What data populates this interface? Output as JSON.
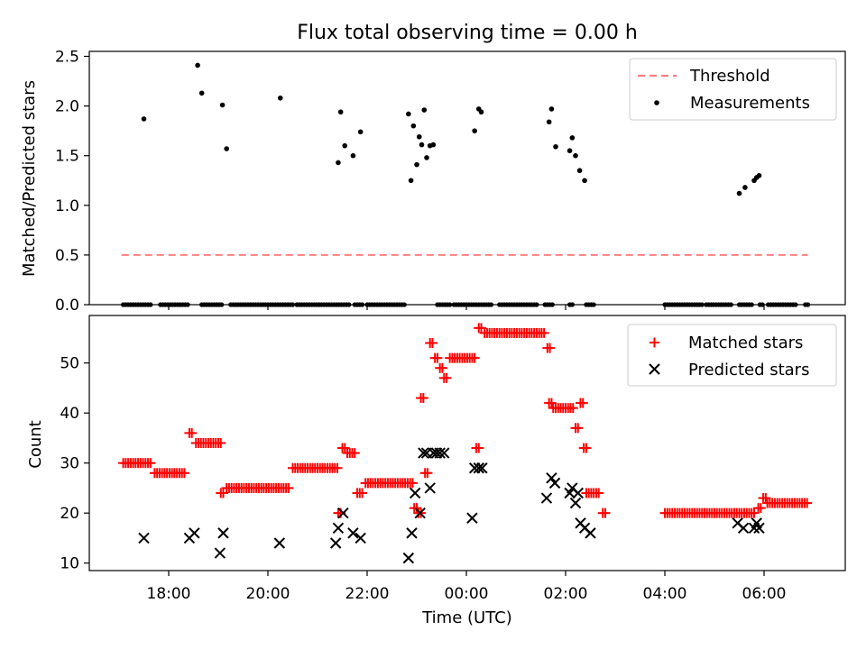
{
  "chart_data": [
    {
      "type": "scatter",
      "title": "Flux total observing time = 0.00 h",
      "ylabel": "Matched/Predicted stars",
      "xlabel": "",
      "ylim": [
        0,
        2.55
      ],
      "yticks": [
        "0.0",
        "0.5",
        "1.0",
        "1.5",
        "2.0",
        "2.5"
      ],
      "xticks_labeled": false,
      "legend": {
        "placement": "top-right",
        "entries": [
          "Threshold",
          "Measurements"
        ]
      },
      "series": [
        {
          "name": "Threshold",
          "kind": "dashed-line",
          "color": "#ff7f7f",
          "x": [
            "17:03",
            "23:59",
            "06:53"
          ],
          "y": [
            0.5,
            0.5,
            0.5
          ]
        },
        {
          "name": "Measurements",
          "kind": "dot",
          "color": "#000000",
          "x": [
            "17:30",
            "18:35",
            "18:40",
            "19:05",
            "19:10",
            "20:15",
            "21:25",
            "21:28",
            "21:33",
            "21:43",
            "21:52",
            "22:50",
            "22:53",
            "22:56",
            "23:00",
            "23:03",
            "23:06",
            "23:09",
            "23:12",
            "23:16",
            "23:20",
            "00:10",
            "00:15",
            "00:18",
            "01:40",
            "01:43",
            "01:48",
            "02:05",
            "02:08",
            "02:12",
            "02:17",
            "02:23",
            "05:30",
            "05:37",
            "05:48",
            "05:51",
            "05:54"
          ],
          "y": [
            1.87,
            2.41,
            2.13,
            2.01,
            1.57,
            2.08,
            1.43,
            1.94,
            1.6,
            1.5,
            1.74,
            1.92,
            1.25,
            1.8,
            1.41,
            1.69,
            1.61,
            1.96,
            1.48,
            1.6,
            1.61,
            1.75,
            1.97,
            1.94,
            1.84,
            1.97,
            1.59,
            1.55,
            1.68,
            1.5,
            1.35,
            1.25,
            1.12,
            1.18,
            1.25,
            1.28,
            1.3
          ]
        },
        {
          "name": "",
          "kind": "dot",
          "color": "#000000",
          "zero_segments": [
            [
              "17:05",
              "17:40"
            ],
            [
              "17:50",
              "18:25"
            ],
            [
              "18:40",
              "19:05"
            ],
            [
              "19:15",
              "20:30"
            ],
            [
              "20:35",
              "21:40"
            ],
            [
              "21:45",
              "21:55"
            ],
            [
              "22:00",
              "22:45"
            ],
            [
              "23:25",
              "23:40"
            ],
            [
              "23:45",
              "00:30"
            ],
            [
              "00:40",
              "01:25"
            ],
            [
              "01:35",
              "01:45"
            ],
            [
              "02:05",
              "02:10"
            ],
            [
              "02:25",
              "02:35"
            ],
            [
              "04:00",
              "04:45"
            ],
            [
              "04:50",
              "05:20"
            ],
            [
              "05:30",
              "05:45"
            ],
            [
              "05:55",
              "06:00"
            ],
            [
              "06:05",
              "06:40"
            ],
            [
              "06:50",
              "06:55"
            ]
          ]
        }
      ]
    },
    {
      "type": "scatter",
      "title": "",
      "ylabel": "Count",
      "xlabel": "Time (UTC)",
      "ylim": [
        8.5,
        59.5
      ],
      "yticks": [
        "10",
        "20",
        "30",
        "40",
        "50"
      ],
      "xticks": [
        "18:00",
        "20:00",
        "22:00",
        "00:00",
        "02:00",
        "04:00",
        "06:00"
      ],
      "legend": {
        "placement": "top-right",
        "entries": [
          "Matched stars",
          "Predicted stars"
        ]
      },
      "series": [
        {
          "name": "Matched stars",
          "marker": "+",
          "color": "#ff0000",
          "segments": [
            {
              "from": "17:05",
              "to": "17:40",
              "y": 30
            },
            {
              "from": "17:43",
              "to": "18:20",
              "y": 28
            },
            {
              "from": "18:25",
              "to": "18:30",
              "y": 36
            },
            {
              "from": "18:33",
              "to": "19:05",
              "y": 34
            },
            {
              "from": "19:03",
              "to": "19:06",
              "y": 24
            },
            {
              "from": "19:10",
              "to": "20:25",
              "y": 25
            },
            {
              "from": "20:30",
              "to": "21:25",
              "y": 29
            },
            {
              "from": "21:25",
              "to": "21:28",
              "y": 20
            },
            {
              "from": "21:30",
              "to": "21:33",
              "y": 33
            },
            {
              "from": "21:36",
              "to": "21:45",
              "y": 32
            },
            {
              "from": "21:48",
              "to": "21:55",
              "y": 24
            },
            {
              "from": "21:58",
              "to": "22:55",
              "y": 26
            },
            {
              "from": "22:57",
              "to": "23:00",
              "y": 21
            },
            {
              "from": "23:02",
              "to": "23:05",
              "y": 20
            },
            {
              "from": "23:05",
              "to": "23:08",
              "y": 43
            },
            {
              "from": "23:10",
              "to": "23:13",
              "y": 28
            },
            {
              "from": "23:16",
              "to": "23:19",
              "y": 54
            },
            {
              "from": "23:22",
              "to": "23:25",
              "y": 51
            },
            {
              "from": "23:28",
              "to": "23:31",
              "y": 49
            },
            {
              "from": "23:33",
              "to": "23:36",
              "y": 47
            },
            {
              "from": "23:40",
              "to": "00:10",
              "y": 51
            },
            {
              "from": "00:12",
              "to": "00:15",
              "y": 33
            },
            {
              "from": "00:15",
              "to": "00:18",
              "y": 57
            },
            {
              "from": "00:22",
              "to": "01:35",
              "y": 56
            },
            {
              "from": "01:38",
              "to": "01:41",
              "y": 53
            },
            {
              "from": "01:40",
              "to": "01:43",
              "y": 42
            },
            {
              "from": "01:45",
              "to": "02:10",
              "y": 41
            },
            {
              "from": "02:12",
              "to": "02:15",
              "y": 37
            },
            {
              "from": "02:18",
              "to": "02:21",
              "y": 42
            },
            {
              "from": "02:22",
              "to": "02:25",
              "y": 33
            },
            {
              "from": "02:25",
              "to": "02:40",
              "y": 24
            },
            {
              "from": "02:45",
              "to": "02:50",
              "y": 20
            },
            {
              "from": "04:00",
              "to": "05:50",
              "y": 20
            },
            {
              "from": "05:53",
              "to": "05:56",
              "y": 21
            },
            {
              "from": "05:59",
              "to": "06:02",
              "y": 23
            },
            {
              "from": "06:04",
              "to": "06:52",
              "y": 22
            }
          ]
        },
        {
          "name": "Predicted stars",
          "marker": "x",
          "color": "#000000",
          "x": [
            "17:30",
            "18:25",
            "18:31",
            "19:02",
            "19:06",
            "20:14",
            "21:22",
            "21:25",
            "21:31",
            "21:43",
            "21:52",
            "22:50",
            "22:54",
            "22:58",
            "23:04",
            "23:08",
            "23:12",
            "23:16",
            "23:20",
            "23:24",
            "23:28",
            "23:33",
            "00:07",
            "00:10",
            "00:15",
            "00:19",
            "01:37",
            "01:43",
            "01:47",
            "02:05",
            "02:08",
            "02:12",
            "02:15",
            "02:18",
            "02:23",
            "02:30",
            "05:28",
            "05:35",
            "05:48",
            "05:51",
            "05:54"
          ],
          "y": [
            15,
            15,
            16,
            12,
            16,
            14,
            14,
            17,
            20,
            16,
            15,
            11,
            16,
            24,
            20,
            32,
            32,
            25,
            32,
            32,
            32,
            32,
            19,
            29,
            29,
            29,
            23,
            27,
            26,
            24,
            25,
            22,
            24,
            18,
            17,
            16,
            18,
            17,
            17,
            18,
            17
          ]
        }
      ]
    }
  ]
}
